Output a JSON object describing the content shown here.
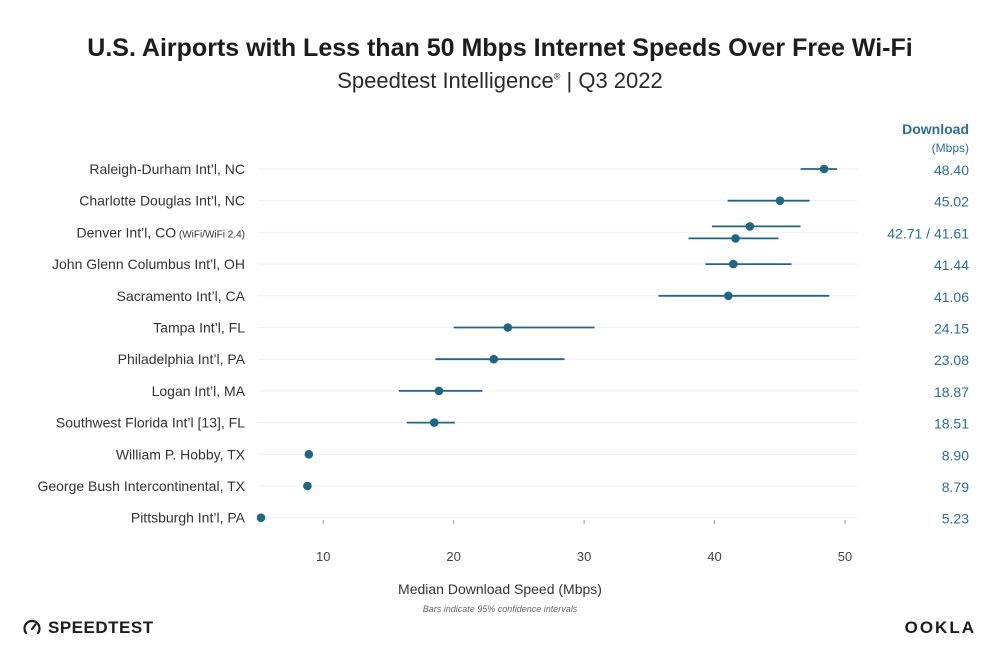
{
  "header": {
    "title": "U.S. Airports with Less than 50 Mbps Internet Speeds Over Free Wi-Fi",
    "subtitle_main": "Speedtest Intelligence",
    "subtitle_mark": "®",
    "subtitle_tail": " | Q3 2022"
  },
  "footer": {
    "note": "Bars indicate 95% confidence intervals",
    "brand_left": "SPEEDTEST",
    "brand_right": "OOKLA"
  },
  "chart_data": {
    "type": "scatter",
    "title": "U.S. Airports with Less than 50 Mbps Internet Speeds Over Free Wi-Fi",
    "xlabel": "Median Download Speed (Mbps)",
    "xlim": [
      5,
      51
    ],
    "xticks": [
      10,
      20,
      30,
      40,
      50
    ],
    "grid": false,
    "marker_color": "#1f6585",
    "value_color": "#2a6f99",
    "value_header": "Download",
    "value_subheader": "(Mbps)",
    "rows": [
      {
        "label": "Raleigh-Durham Int’l, NC",
        "note": "",
        "value_text": "48.40",
        "points": [
          {
            "value": 48.4,
            "ci": [
              46.6,
              49.4
            ]
          }
        ]
      },
      {
        "label": "Charlotte Douglas Int’l, NC",
        "note": "",
        "value_text": "45.02",
        "points": [
          {
            "value": 45.02,
            "ci": [
              41.0,
              47.3
            ]
          }
        ]
      },
      {
        "label": "Denver Int’l, CO",
        "note": "(WiFi/WiFi 2.4)",
        "value_text": "42.71 / 41.61",
        "points": [
          {
            "value": 42.71,
            "ci": [
              39.8,
              46.6
            ]
          },
          {
            "value": 41.61,
            "ci": [
              38.0,
              44.9
            ]
          }
        ]
      },
      {
        "label": "John Glenn Columbus Int’l, OH",
        "note": "",
        "value_text": "41.44",
        "points": [
          {
            "value": 41.44,
            "ci": [
              39.3,
              45.9
            ]
          }
        ]
      },
      {
        "label": "Sacramento Int’l, CA",
        "note": "",
        "value_text": "41.06",
        "points": [
          {
            "value": 41.06,
            "ci": [
              35.7,
              48.8
            ]
          }
        ]
      },
      {
        "label": "Tampa Int’l, FL",
        "note": "",
        "value_text": "24.15",
        "points": [
          {
            "value": 24.15,
            "ci": [
              20.0,
              30.8
            ]
          }
        ]
      },
      {
        "label": "Philadelphia Int’l, PA",
        "note": "",
        "value_text": "23.08",
        "points": [
          {
            "value": 23.08,
            "ci": [
              18.6,
              28.5
            ]
          }
        ]
      },
      {
        "label": "Logan Int’l, MA",
        "note": "",
        "value_text": "18.87",
        "points": [
          {
            "value": 18.87,
            "ci": [
              15.8,
              22.2
            ]
          }
        ]
      },
      {
        "label": "Southwest Florida Int’l [13], FL",
        "note": "",
        "value_text": "18.51",
        "points": [
          {
            "value": 18.51,
            "ci": [
              16.4,
              20.1
            ]
          }
        ]
      },
      {
        "label": "William P. Hobby, TX",
        "note": "",
        "value_text": "8.90",
        "points": [
          {
            "value": 8.9,
            "ci": null
          }
        ]
      },
      {
        "label": "George Bush Intercontinental, TX",
        "note": "",
        "value_text": "8.79",
        "points": [
          {
            "value": 8.79,
            "ci": null
          }
        ]
      },
      {
        "label": "Pittsburgh Int’l, PA",
        "note": "",
        "value_text": "5.23",
        "points": [
          {
            "value": 5.23,
            "ci": null
          }
        ]
      }
    ]
  }
}
